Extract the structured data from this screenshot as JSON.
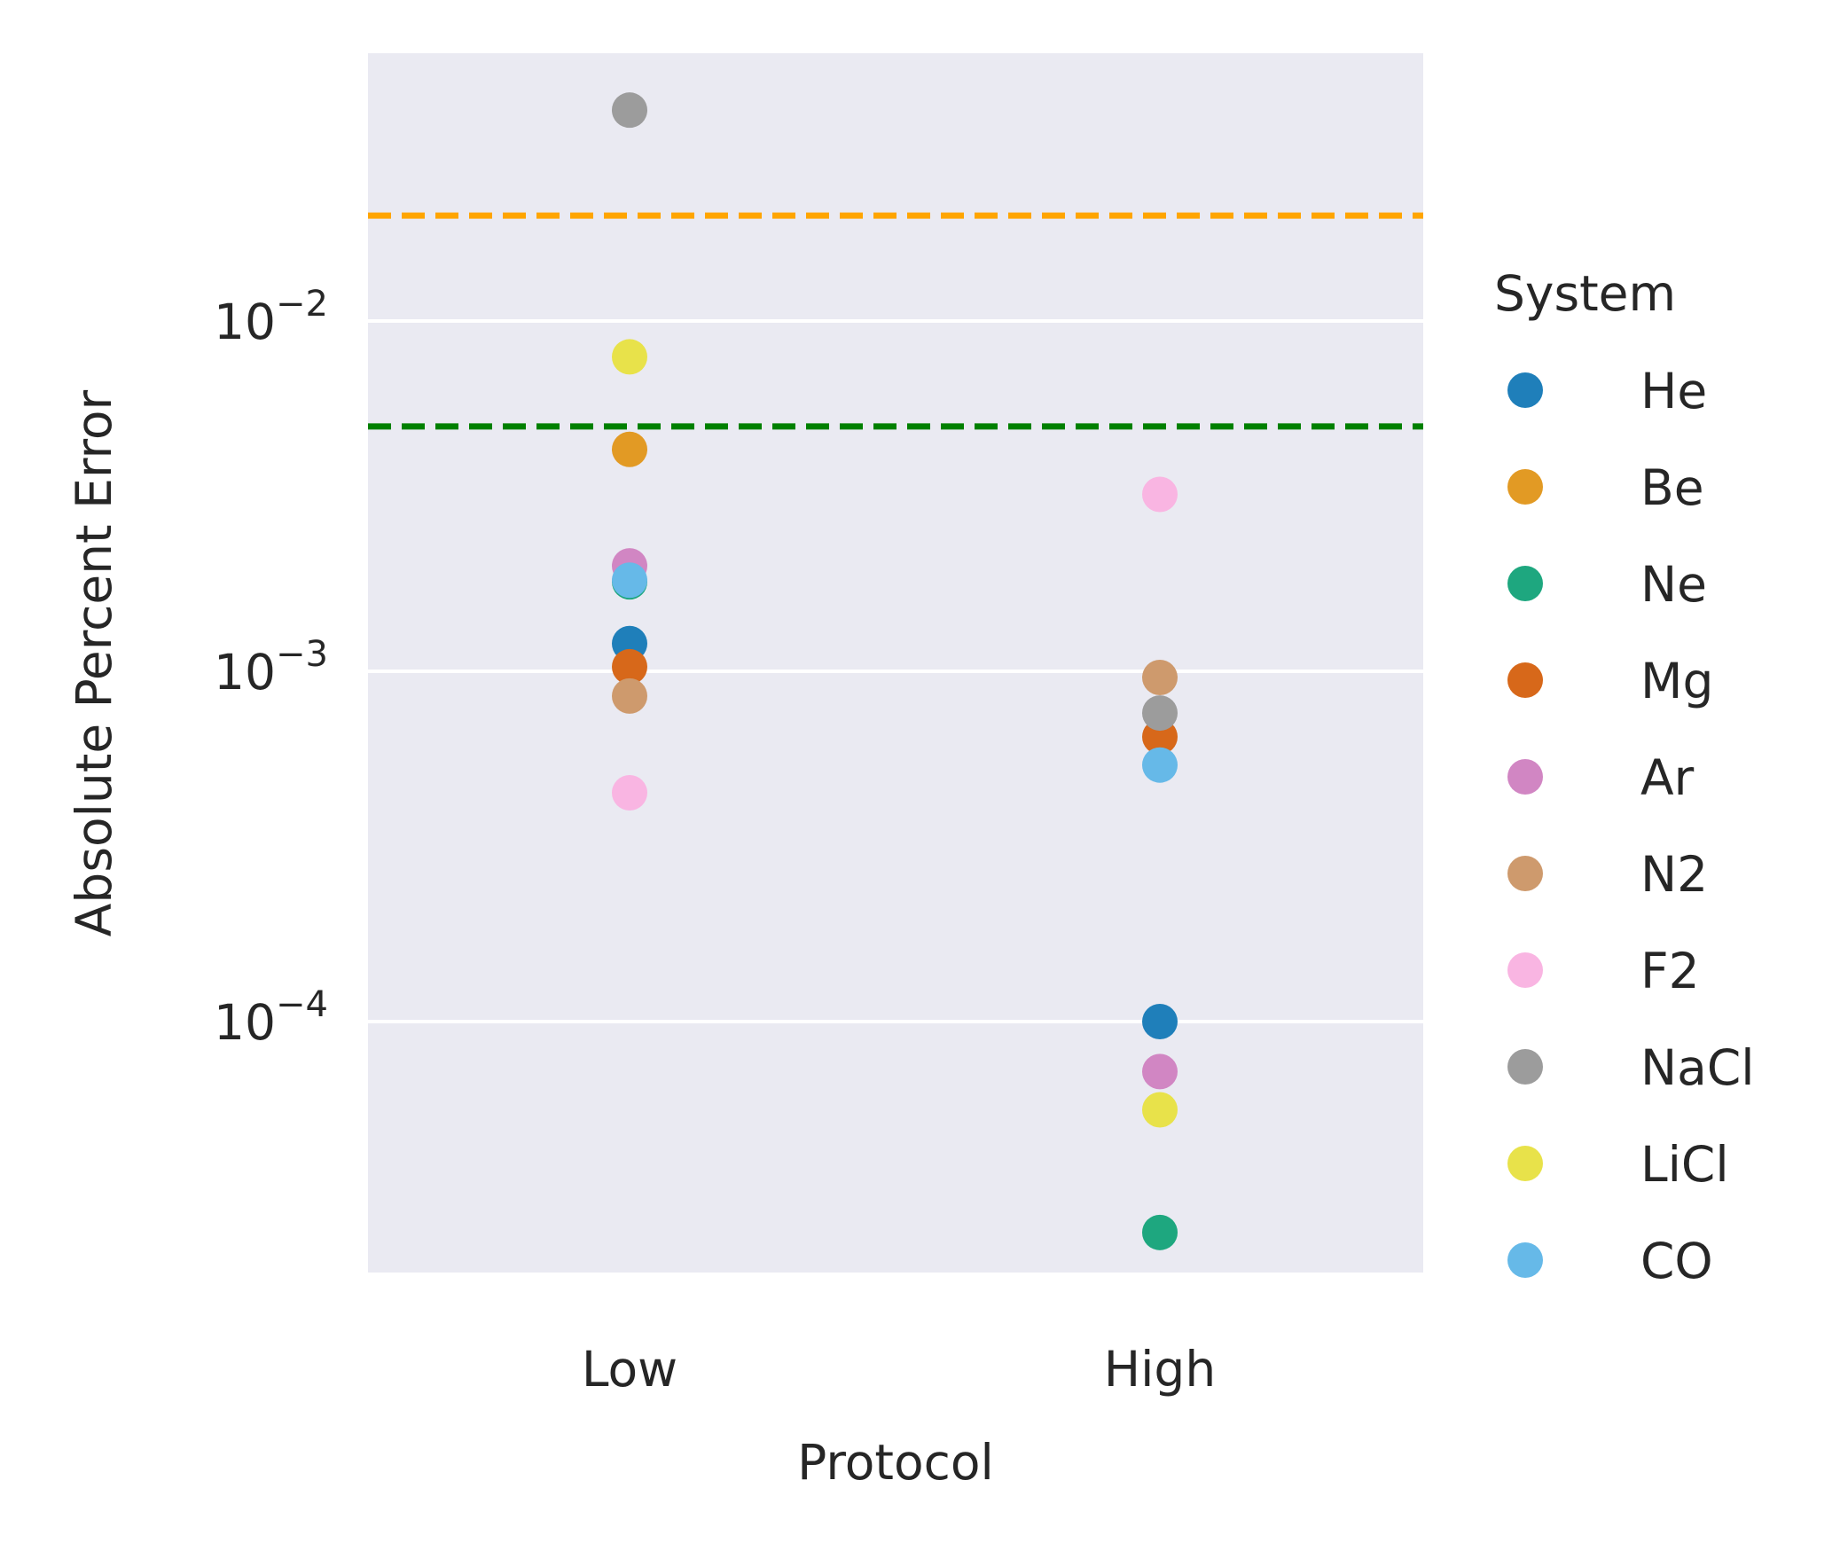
{
  "chart_data": {
    "type": "scatter",
    "title": "",
    "xlabel": "Protocol",
    "ylabel": "Absolute Percent Error",
    "categories": [
      "Low",
      "High"
    ],
    "yscale": "log",
    "ylim": [
      2e-05,
      0.06
    ],
    "yticks": [
      {
        "value": 0.0001,
        "base": "10",
        "exp": "−4"
      },
      {
        "value": 0.001,
        "base": "10",
        "exp": "−3"
      },
      {
        "value": 0.01,
        "base": "10",
        "exp": "−2"
      }
    ],
    "grid": true,
    "background": "#eaeaf2",
    "reference_lines": [
      {
        "y": 0.02,
        "color": "#ffa500",
        "style": "dashed"
      },
      {
        "y": 0.005,
        "color": "#008000",
        "style": "dashed"
      }
    ],
    "legend": {
      "title": "System",
      "placement": "right"
    },
    "series": [
      {
        "name": "He",
        "color": "#1f7fba",
        "values": [
          0.0012,
          0.0001
        ]
      },
      {
        "name": "Be",
        "color": "#e29a24",
        "values": [
          0.0043,
          null
        ]
      },
      {
        "name": "Ne",
        "color": "#1ea77f",
        "values": [
          0.0018,
          2.5e-05
        ]
      },
      {
        "name": "Mg",
        "color": "#d7681a",
        "values": [
          0.00103,
          0.00065
        ]
      },
      {
        "name": "Ar",
        "color": "#d186c3",
        "values": [
          0.002,
          7.2e-05
        ]
      },
      {
        "name": "N2",
        "color": "#ce9a6d",
        "values": [
          0.00085,
          0.00096
        ]
      },
      {
        "name": "F2",
        "color": "#f9b5e2",
        "values": [
          0.00045,
          0.0032
        ]
      },
      {
        "name": "NaCl",
        "color": "#9c9c9c",
        "values": [
          0.04,
          0.00076
        ]
      },
      {
        "name": "LiCl",
        "color": "#e8e24a",
        "values": [
          0.0079,
          5.6e-05
        ]
      },
      {
        "name": "CO",
        "color": "#66b9e8",
        "values": [
          0.00182,
          0.00054
        ]
      }
    ]
  }
}
